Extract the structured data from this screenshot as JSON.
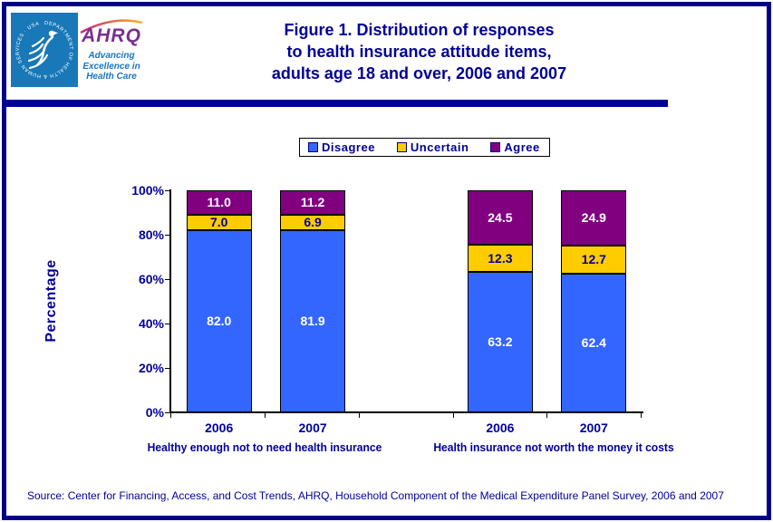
{
  "header": {
    "title_lines": [
      "Figure 1. Distribution of responses",
      "to health insurance attitude items,",
      "adults age 18 and over, 2006 and 2007"
    ],
    "logo": {
      "seal_text": "DEPARTMENT OF HEALTH & HUMAN SERVICES · USA",
      "acronym": "AHRQ",
      "tagline_lines": [
        "Advancing",
        "Excellence in",
        "Health Care"
      ]
    }
  },
  "chart_data": {
    "type": "bar",
    "stacked": true,
    "ylabel": "Percentage",
    "ylim": [
      0,
      100
    ],
    "yticks": [
      "0%",
      "20%",
      "40%",
      "60%",
      "80%",
      "100%"
    ],
    "legend_position": "top",
    "grid": false,
    "groups": [
      {
        "label": "Healthy enough not to need health insurance",
        "categories": [
          "2006",
          "2007"
        ]
      },
      {
        "label": "Health insurance not worth the money it costs",
        "categories": [
          "2006",
          "2007"
        ]
      }
    ],
    "series": [
      {
        "name": "Disagree",
        "color": "#3366FF",
        "label_color": "#FFFFFF",
        "values": [
          82.0,
          81.9,
          63.2,
          62.4
        ]
      },
      {
        "name": "Uncertain",
        "color": "#FFCC00",
        "label_color": "#000099",
        "values": [
          7.0,
          6.9,
          12.3,
          12.7
        ]
      },
      {
        "name": "Agree",
        "color": "#800080",
        "label_color": "#FFFFFF",
        "values": [
          11.0,
          11.2,
          24.5,
          24.9
        ]
      }
    ]
  },
  "source": "Source: Center for Financing, Access, and Cost Trends, AHRQ, Household Component of the Medical Expenditure Panel Survey,  2006 and 2007",
  "colors": {
    "navy_text": "#000099",
    "page_border": "#00008B",
    "axis": "#000000",
    "logo_blue_bg": "#1878B8",
    "ahrq_purple": "#7B2E8E",
    "logo_text_blue": "#1B75BC"
  }
}
